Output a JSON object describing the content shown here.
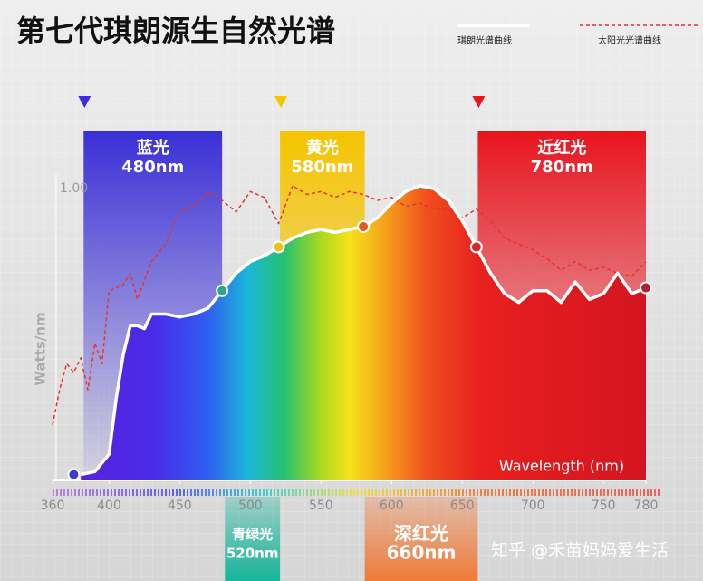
{
  "chart_data": {
    "type": "line",
    "title": "第七代琪朗源生自然光谱",
    "x_label": "Wavelength (nm)",
    "y_label": "Watts/nm",
    "xlim": [
      360,
      780
    ],
    "ylim": [
      0,
      1.05
    ],
    "xticks": [
      360,
      400,
      450,
      500,
      550,
      600,
      650,
      700,
      750,
      780
    ],
    "yticks": [
      {
        "value": 1,
        "label": "1.00"
      }
    ],
    "series": [
      {
        "name": "琪朗光谱曲线",
        "color": "#ffffff",
        "style": "solid",
        "x": [
          380,
          390,
          400,
          405,
          410,
          415,
          420,
          425,
          430,
          440,
          450,
          460,
          470,
          480,
          490,
          500,
          510,
          520,
          530,
          540,
          550,
          560,
          570,
          580,
          590,
          600,
          610,
          620,
          630,
          640,
          650,
          660,
          670,
          680,
          690,
          700,
          710,
          720,
          730,
          740,
          750,
          760,
          770,
          780
        ],
        "values": [
          0.02,
          0.03,
          0.09,
          0.28,
          0.43,
          0.53,
          0.53,
          0.52,
          0.57,
          0.57,
          0.56,
          0.57,
          0.59,
          0.65,
          0.71,
          0.75,
          0.77,
          0.8,
          0.83,
          0.85,
          0.86,
          0.85,
          0.86,
          0.87,
          0.9,
          0.95,
          0.99,
          1.01,
          1.0,
          0.96,
          0.89,
          0.8,
          0.71,
          0.64,
          0.61,
          0.65,
          0.65,
          0.61,
          0.68,
          0.62,
          0.64,
          0.71,
          0.64,
          0.66
        ]
      },
      {
        "name": "太阳光光谱曲线",
        "color": "#e8332a",
        "style": "dashed",
        "x": [
          360,
          365,
          370,
          375,
          380,
          385,
          390,
          395,
          400,
          410,
          415,
          420,
          430,
          440,
          450,
          460,
          470,
          480,
          490,
          500,
          510,
          520,
          530,
          540,
          550,
          560,
          570,
          580,
          590,
          600,
          610,
          620,
          630,
          640,
          650,
          660,
          670,
          680,
          690,
          700,
          710,
          720,
          730,
          740,
          750,
          760,
          770,
          780
        ],
        "values": [
          0.19,
          0.31,
          0.4,
          0.37,
          0.42,
          0.31,
          0.47,
          0.4,
          0.65,
          0.67,
          0.71,
          0.62,
          0.75,
          0.81,
          0.92,
          0.94,
          0.99,
          0.96,
          0.92,
          0.99,
          0.97,
          0.88,
          1.01,
          0.98,
          0.99,
          0.97,
          0.99,
          0.98,
          0.96,
          0.97,
          0.94,
          0.95,
          0.93,
          0.93,
          0.9,
          0.93,
          0.89,
          0.83,
          0.81,
          0.79,
          0.76,
          0.72,
          0.75,
          0.72,
          0.73,
          0.71,
          0.7,
          0.75
        ]
      }
    ],
    "points": {
      "x": [
        375,
        480,
        520,
        580,
        660,
        780
      ],
      "values": [
        0.02,
        0.65,
        0.8,
        0.87,
        0.8,
        0.66
      ],
      "colors": [
        "#3b3bd8",
        "#2aa88a",
        "#e6c619",
        "#e55a22",
        "#d8262a",
        "#b81e2a"
      ]
    },
    "bands": [
      {
        "name": "蓝光",
        "label": "480nm",
        "range": [
          382,
          480
        ],
        "color": "#3a2fd6",
        "position": "top"
      },
      {
        "name": "黄光",
        "label": "580nm",
        "range": [
          521,
          581
        ],
        "color": "#f5c400",
        "position": "top"
      },
      {
        "name": "近红光",
        "label": "780nm",
        "range": [
          661,
          780
        ],
        "color": "#e8141e",
        "position": "top"
      },
      {
        "name": "青绿光",
        "label": "520nm",
        "range": [
          482,
          521
        ],
        "color": "#16b49a",
        "position": "bottom"
      },
      {
        "name": "深红光",
        "label": "660nm",
        "range": [
          581,
          661
        ],
        "color": "#f07a3a",
        "position": "bottom"
      }
    ],
    "watermark": "知乎 @禾苗妈妈爱生活"
  }
}
